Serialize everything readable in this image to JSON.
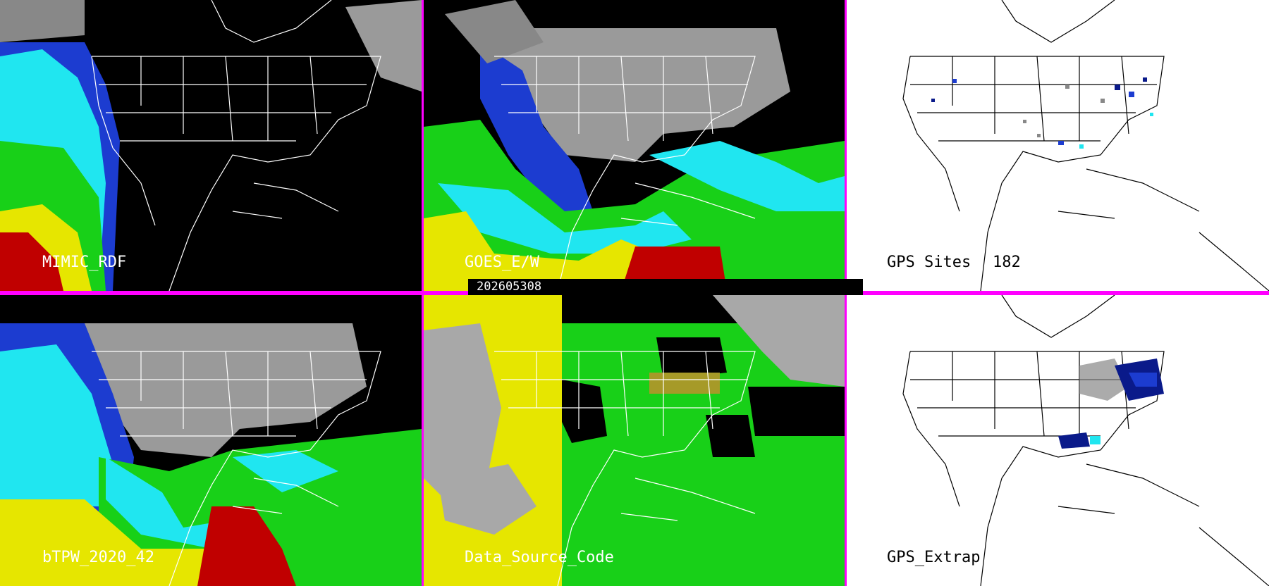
{
  "panels": {
    "p1": {
      "label": "MIMIC_RDF"
    },
    "p2": {
      "label": "GOES_E/W"
    },
    "p3": {
      "label": "GPS Sites",
      "count": "182"
    },
    "p4": {
      "label": "bTPW_2020_42"
    },
    "p5": {
      "label": "Data_Source_Code"
    },
    "p6": {
      "label": "GPS_Extrap"
    }
  },
  "timestamp": "202605308",
  "colors": {
    "divider": "#ff00ff",
    "black": "#000000",
    "white": "#ffffff",
    "navy": "#0a1a8a",
    "blue": "#1c3cd0",
    "cyan": "#20e6f0",
    "green": "#18d018",
    "yellow": "#e6e600",
    "red": "#c00000",
    "gray": "#a8a8a8",
    "olive": "#a69a28"
  }
}
